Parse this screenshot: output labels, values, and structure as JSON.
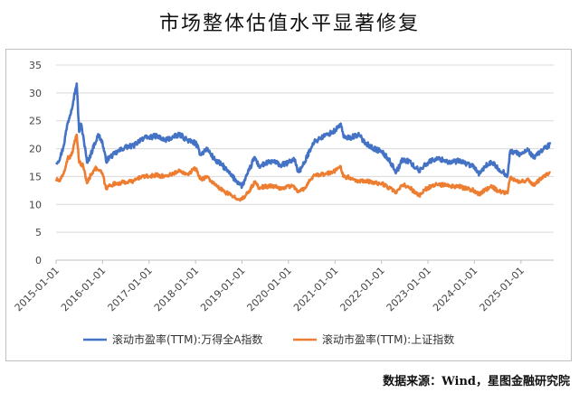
{
  "title": "市场整体估值水平显著修复",
  "source": "数据来源：Wind，星图金融研究院",
  "colors": {
    "series1": "#4472C4",
    "series2": "#ED7D31",
    "grid": "#d9d9d9"
  },
  "chart_data": {
    "type": "line",
    "title": "市场整体估值水平显著修复",
    "xlabel": "",
    "ylabel": "",
    "ylim": [
      0,
      35
    ],
    "yticks": [
      "0",
      "5",
      "10",
      "15",
      "20",
      "25",
      "30",
      "35"
    ],
    "xticks": [
      "2015-01-01",
      "2016-01-01",
      "2017-01-01",
      "2018-01-01",
      "2019-01-01",
      "2020-01-01",
      "2021-01-01",
      "2022-01-01",
      "2023-01-01",
      "2024-01-01",
      "2025-01-01"
    ],
    "grid": "horizontal",
    "legend_position": "bottom",
    "series": [
      {
        "name": "滚动市盈率(TTM):万得全A指数",
        "points": [
          [
            "2015-01-01",
            17.5
          ],
          [
            "2015-02-01",
            18.3
          ],
          [
            "2015-03-01",
            20.5
          ],
          [
            "2015-04-01",
            24.5
          ],
          [
            "2015-05-01",
            27
          ],
          [
            "2015-06-01",
            30.5
          ],
          [
            "2015-06-12",
            31.7
          ],
          [
            "2015-07-01",
            23
          ],
          [
            "2015-07-15",
            24.5
          ],
          [
            "2015-08-01",
            22.5
          ],
          [
            "2015-09-01",
            17.5
          ],
          [
            "2015-10-01",
            19
          ],
          [
            "2015-11-01",
            21
          ],
          [
            "2015-12-01",
            22.5
          ],
          [
            "2016-01-01",
            21
          ],
          [
            "2016-01-28",
            17.8
          ],
          [
            "2016-03-01",
            18.5
          ],
          [
            "2016-05-01",
            19.5
          ],
          [
            "2016-07-01",
            20.3
          ],
          [
            "2016-09-01",
            20.5
          ],
          [
            "2016-11-01",
            21.8
          ],
          [
            "2017-01-01",
            22
          ],
          [
            "2017-03-01",
            22.3
          ],
          [
            "2017-05-01",
            21.5
          ],
          [
            "2017-07-01",
            22
          ],
          [
            "2017-09-01",
            22.5
          ],
          [
            "2017-11-01",
            21.5
          ],
          [
            "2018-01-01",
            21
          ],
          [
            "2018-02-10",
            19
          ],
          [
            "2018-04-01",
            20
          ],
          [
            "2018-06-01",
            18
          ],
          [
            "2018-08-01",
            17
          ],
          [
            "2018-10-15",
            15
          ],
          [
            "2019-01-02",
            13.3
          ],
          [
            "2019-02-15",
            15.5
          ],
          [
            "2019-04-10",
            18.5
          ],
          [
            "2019-05-15",
            16.8
          ],
          [
            "2019-07-01",
            17.3
          ],
          [
            "2019-09-01",
            17.8
          ],
          [
            "2019-11-01",
            17
          ],
          [
            "2020-01-01",
            17.5
          ],
          [
            "2020-02-15",
            18.2
          ],
          [
            "2020-03-20",
            15.8
          ],
          [
            "2020-05-01",
            17.2
          ],
          [
            "2020-07-10",
            21
          ],
          [
            "2020-09-01",
            21.8
          ],
          [
            "2020-11-01",
            22.5
          ],
          [
            "2021-01-01",
            23.2
          ],
          [
            "2021-02-15",
            24.5
          ],
          [
            "2021-03-10",
            22
          ],
          [
            "2021-05-01",
            22
          ],
          [
            "2021-07-01",
            22.5
          ],
          [
            "2021-09-01",
            21
          ],
          [
            "2021-11-01",
            20
          ],
          [
            "2022-01-01",
            19.5
          ],
          [
            "2022-03-01",
            18
          ],
          [
            "2022-04-27",
            15.8
          ],
          [
            "2022-06-15",
            18
          ],
          [
            "2022-08-01",
            17.8
          ],
          [
            "2022-10-25",
            16
          ],
          [
            "2022-12-01",
            17
          ],
          [
            "2023-01-01",
            17.5
          ],
          [
            "2023-03-01",
            18.2
          ],
          [
            "2023-05-01",
            18
          ],
          [
            "2023-07-01",
            17.5
          ],
          [
            "2023-09-01",
            17.8
          ],
          [
            "2023-11-01",
            17.3
          ],
          [
            "2024-01-01",
            16.8
          ],
          [
            "2024-02-05",
            15.2
          ],
          [
            "2024-03-20",
            16.8
          ],
          [
            "2024-05-20",
            17.5
          ],
          [
            "2024-07-01",
            16.5
          ],
          [
            "2024-09-18",
            15.2
          ],
          [
            "2024-10-08",
            19.5
          ],
          [
            "2024-11-15",
            19.3
          ],
          [
            "2025-01-01",
            19
          ],
          [
            "2025-03-01",
            19.8
          ],
          [
            "2025-04-08",
            18.3
          ],
          [
            "2025-06-01",
            19.5
          ],
          [
            "2025-07-15",
            20.2
          ],
          [
            "2025-08-20",
            20.8
          ]
        ]
      },
      {
        "name": "滚动市盈率(TTM):上证指数",
        "points": [
          [
            "2015-01-01",
            14.5
          ],
          [
            "2015-02-01",
            14.2
          ],
          [
            "2015-03-01",
            15.5
          ],
          [
            "2015-04-01",
            18.2
          ],
          [
            "2015-05-01",
            18.8
          ],
          [
            "2015-06-01",
            21.5
          ],
          [
            "2015-06-12",
            22.5
          ],
          [
            "2015-07-01",
            17.5
          ],
          [
            "2015-08-01",
            17
          ],
          [
            "2015-09-01",
            13.8
          ],
          [
            "2015-10-01",
            15.3
          ],
          [
            "2015-11-01",
            16.5
          ],
          [
            "2015-12-01",
            16.2
          ],
          [
            "2016-01-01",
            15.5
          ],
          [
            "2016-01-28",
            12.8
          ],
          [
            "2016-03-01",
            13.5
          ],
          [
            "2016-05-01",
            13.8
          ],
          [
            "2016-07-01",
            14
          ],
          [
            "2016-09-01",
            14.2
          ],
          [
            "2016-11-01",
            15
          ],
          [
            "2017-01-01",
            15
          ],
          [
            "2017-03-01",
            15.3
          ],
          [
            "2017-05-01",
            15
          ],
          [
            "2017-07-01",
            15.5
          ],
          [
            "2017-09-01",
            16
          ],
          [
            "2017-11-01",
            15.5
          ],
          [
            "2018-01-01",
            16.5
          ],
          [
            "2018-02-10",
            14.5
          ],
          [
            "2018-04-01",
            15
          ],
          [
            "2018-06-01",
            13.5
          ],
          [
            "2018-08-01",
            12.5
          ],
          [
            "2018-10-15",
            11.5
          ],
          [
            "2019-01-02",
            10.9
          ],
          [
            "2019-02-15",
            12
          ],
          [
            "2019-04-10",
            14
          ],
          [
            "2019-05-15",
            13
          ],
          [
            "2019-07-01",
            13.2
          ],
          [
            "2019-09-01",
            13.3
          ],
          [
            "2019-11-01",
            12.8
          ],
          [
            "2020-01-01",
            13.3
          ],
          [
            "2020-02-15",
            13.2
          ],
          [
            "2020-03-20",
            12.2
          ],
          [
            "2020-05-01",
            12.8
          ],
          [
            "2020-07-10",
            15
          ],
          [
            "2020-09-01",
            15.3
          ],
          [
            "2020-11-01",
            15.5
          ],
          [
            "2021-01-01",
            16
          ],
          [
            "2021-02-15",
            16.8
          ],
          [
            "2021-03-10",
            15
          ],
          [
            "2021-05-01",
            14.8
          ],
          [
            "2021-07-01",
            14.2
          ],
          [
            "2021-09-01",
            14.3
          ],
          [
            "2021-11-01",
            13.8
          ],
          [
            "2022-01-01",
            13.8
          ],
          [
            "2022-03-01",
            13
          ],
          [
            "2022-04-27",
            12
          ],
          [
            "2022-06-15",
            13.5
          ],
          [
            "2022-08-01",
            13.2
          ],
          [
            "2022-10-25",
            11.5
          ],
          [
            "2022-12-01",
            12.5
          ],
          [
            "2023-01-01",
            13
          ],
          [
            "2023-03-01",
            13.5
          ],
          [
            "2023-05-01",
            13.5
          ],
          [
            "2023-07-01",
            13.2
          ],
          [
            "2023-09-01",
            13.2
          ],
          [
            "2023-11-01",
            12.8
          ],
          [
            "2024-01-01",
            12.5
          ],
          [
            "2024-02-05",
            11.8
          ],
          [
            "2024-03-20",
            12.5
          ],
          [
            "2024-05-20",
            13.2
          ],
          [
            "2024-07-01",
            12.5
          ],
          [
            "2024-09-18",
            12
          ],
          [
            "2024-10-08",
            14.8
          ],
          [
            "2024-11-15",
            14.5
          ],
          [
            "2025-01-01",
            14
          ],
          [
            "2025-03-01",
            14.5
          ],
          [
            "2025-04-08",
            13.5
          ],
          [
            "2025-06-01",
            14.5
          ],
          [
            "2025-07-15",
            15.3
          ],
          [
            "2025-08-20",
            15.7
          ]
        ]
      }
    ]
  }
}
